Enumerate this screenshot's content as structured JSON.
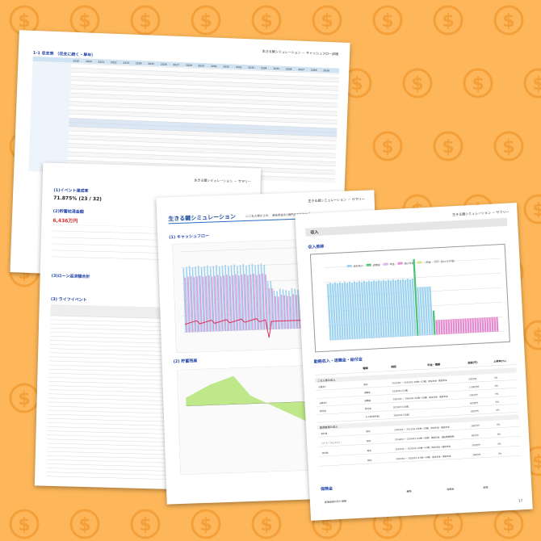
{
  "page1": {
    "header": "生きる鍵シミュレーション － キャッシュフロー詳細",
    "section": "1-1 収支表 （収支に続く・単年）",
    "years": [
      "2019",
      "2020",
      "2021",
      "2022",
      "2023",
      "2024",
      "2025",
      "2026",
      "2027",
      "2028",
      "2029",
      "2030",
      "2031",
      "2032",
      "2033",
      "2034",
      "2035",
      "2036",
      "2037",
      "2038",
      "2039"
    ]
  },
  "page2": {
    "header": "生きる鍵シミュレーション － サマリー",
    "event_title": "(1)イベント達成率",
    "event_rate": "71.875% (23 / 32)",
    "deficit_title": "(2)貯蓄枯渇金額",
    "deficit_value": "6,436万円",
    "loan_title": "(3)ローン返済額合計",
    "life_event_title": "(3) ライフイベント"
  },
  "page3": {
    "title": "生きる鍵シミュレーション",
    "subtitle": "にご夫人様からの、 老後資金の1億円までを含める",
    "header": "生きる鍵シミュレーション － サマリー",
    "cashflow_title": "(1) キャッシュフロー",
    "savings_title": "(2) 貯蓄残高"
  },
  "page4": {
    "header": "生きる鍵シミュレーション － サマリー",
    "income_header": "収入",
    "income_chart_title": "収入推移",
    "legend": [
      "給与収入",
      "退職金",
      "年金",
      "個人年金",
      "一時金",
      "収入(その他)"
    ],
    "table_title": "勤務収入・退職金・給付金",
    "table_columns": [
      "種類",
      "期間",
      "年金・種類",
      "金額(円)",
      "上昇率(%)"
    ],
    "row_groups": [
      "ご主人様の収入",
      "配偶者様の収入"
    ],
    "rows": [
      {
        "label": "お勤め1",
        "type": "給与",
        "period": "2014/03 〜 2034/03 (32歳〜52歳)",
        "pension": "厚生年金・国民年金",
        "amount": "500万円",
        "rate": "0%"
      },
      {
        "label": "",
        "type": "退職金",
        "period": "2034/03 (52歳)",
        "pension": "",
        "amount": "1,000万円",
        "rate": "0%"
      },
      {
        "label": "お勤め2",
        "type": "退職金",
        "period": "2035/03 〜 2040/03 (53歳〜58歳)",
        "pension": "厚生年金・国民年金",
        "amount": "500万円",
        "rate": "0%"
      },
      {
        "label": "給付金",
        "type": "給付金",
        "period": "2025/03 (43歳)",
        "pension": "",
        "amount": "400万円",
        "rate": "0%"
      },
      {
        "label": "",
        "type": "その他(給付金)",
        "period": "2034/03 (52歳)",
        "pension": "",
        "amount": "100万円",
        "rate": "0%"
      },
      {
        "label": "会社員",
        "type": "給与",
        "period": "2005/03 〜 2013/03 (20歳〜28歳)",
        "pension": "厚生年金・国民年金",
        "amount": "300万円",
        "rate": "0%"
      },
      {
        "label": "パート・アルバイト",
        "type": "給与",
        "period": "2018/03 〜 2024/03 (33歳〜39歳)",
        "pension": "国民年金・国民健康保険",
        "amount": "80万円",
        "rate": "0%"
      },
      {
        "label": "会社員",
        "type": "給与",
        "period": "2025/03 〜 2032/03 (40歳〜47歳)",
        "pension": "厚生年金・国民年金",
        "amount": "300万円",
        "rate": "0%"
      },
      {
        "label": "",
        "type": "給与",
        "period": "2032/04 〜 2039/03 (47歳〜54歳)",
        "pension": "厚生年金・国民年金",
        "amount": "200万円",
        "rate": "0%"
      }
    ],
    "insurance_title": "保険金",
    "insurance_columns": [
      "種類",
      "保険金",
      "金額"
    ],
    "insurance_row": "配偶者様の死亡保険",
    "page_number": "17"
  },
  "colors": {
    "background": "#fdb75a",
    "coin": "#f4a03a",
    "bar_blue": "#9fd3f0",
    "bar_pink": "#e19ad7",
    "line_red": "#e0305a",
    "area_green": "#b7e57c",
    "accent": "#2b6cc4"
  }
}
